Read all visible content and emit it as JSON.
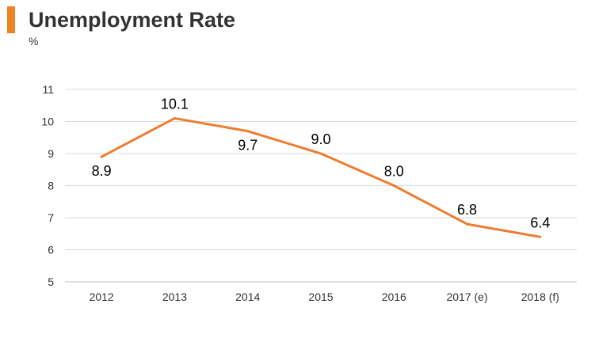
{
  "header": {
    "title": "Unemployment Rate",
    "unit": "%"
  },
  "colors": {
    "accent": "#f08326",
    "line": "#ed7d31",
    "grid": "#d9d9d9",
    "axis": "#bfbfbf",
    "text": "#333333"
  },
  "chart_data": {
    "type": "line",
    "title": "Unemployment Rate",
    "xlabel": "",
    "ylabel": "%",
    "categories": [
      "2012",
      "2013",
      "2014",
      "2015",
      "2016",
      "2017 (e)",
      "2018 (f)"
    ],
    "series": [
      {
        "values": [
          8.9,
          10.1,
          9.7,
          9.0,
          8.0,
          6.8,
          6.4
        ]
      }
    ],
    "data_labels": [
      "8.9",
      "10.1",
      "9.7",
      "9.0",
      "8.0",
      "6.8",
      "6.4"
    ],
    "ylim": [
      5,
      11
    ],
    "yticks": [
      "5",
      "6",
      "7",
      "8",
      "9",
      "10",
      "11"
    ],
    "grid": true,
    "legend": "none"
  }
}
